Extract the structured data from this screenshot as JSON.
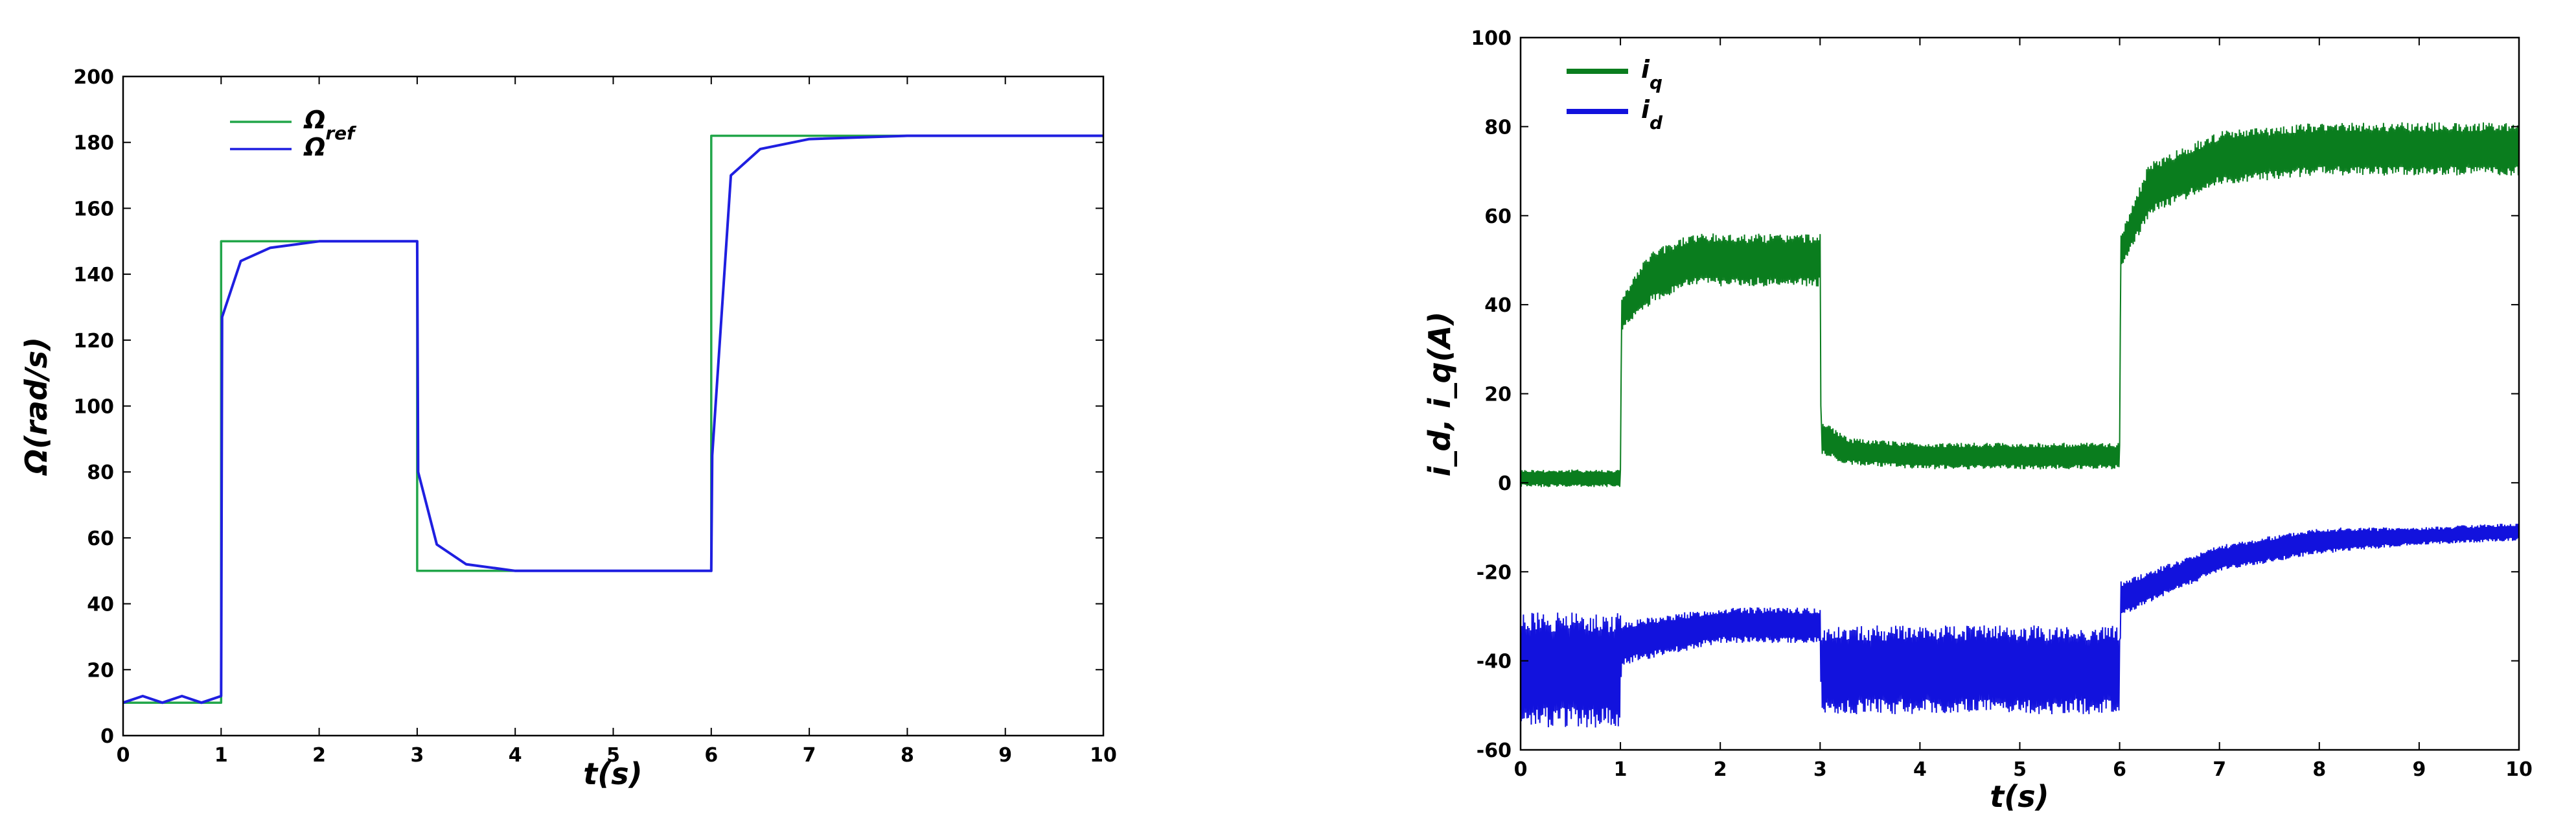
{
  "chart_data": [
    {
      "type": "line",
      "xlabel": "t(s)",
      "ylabel": "Ω(rad/s)",
      "xlim": [
        0,
        10
      ],
      "ylim": [
        0,
        200
      ],
      "xticks": [
        "0",
        "1",
        "2",
        "3",
        "4",
        "5",
        "6",
        "7",
        "8",
        "9",
        "10"
      ],
      "yticks": [
        "0",
        "20",
        "40",
        "60",
        "80",
        "100",
        "120",
        "140",
        "160",
        "180",
        "200"
      ],
      "legend_position": "top-left",
      "series": [
        {
          "name": "Ω_ref",
          "label_main": "Ω",
          "label_sub": "ref",
          "color": "#22a64a",
          "x": [
            0,
            1,
            1,
            3,
            3,
            6,
            6,
            10
          ],
          "y": [
            10,
            10,
            150,
            150,
            50,
            50,
            182,
            182
          ]
        },
        {
          "name": "Ω",
          "label_main": "Ω",
          "label_sub": "",
          "color": "#1f1fe0",
          "x": [
            0,
            0.2,
            0.4,
            0.6,
            0.8,
            1.0,
            1.01,
            1.2,
            1.5,
            2.0,
            2.5,
            3.0,
            3.01,
            3.2,
            3.5,
            4.0,
            5.0,
            6.0,
            6.01,
            6.2,
            6.5,
            7.0,
            8.0,
            10.0
          ],
          "y": [
            10,
            12,
            10,
            12,
            10,
            12,
            127,
            144,
            148,
            150,
            150,
            150,
            80,
            58,
            52,
            50,
            50,
            50,
            85,
            170,
            178,
            181,
            182,
            182
          ]
        }
      ]
    },
    {
      "type": "line",
      "xlabel": "t(s)",
      "ylabel": "i_d, i_q(A)",
      "xlim": [
        0,
        10
      ],
      "ylim": [
        -60,
        100
      ],
      "xticks": [
        "0",
        "1",
        "2",
        "3",
        "4",
        "5",
        "6",
        "7",
        "8",
        "9",
        "10"
      ],
      "yticks": [
        "-60",
        "-40",
        "-20",
        "0",
        "20",
        "40",
        "60",
        "80",
        "100"
      ],
      "legend_position": "top-left",
      "series": [
        {
          "name": "i_q",
          "label_main": "i",
          "label_sub": "q",
          "color": "#0a7d1e",
          "x": [
            0,
            1.0,
            1.01,
            1.3,
            1.7,
            2.0,
            3.0,
            3.01,
            3.3,
            4.0,
            6.0,
            6.01,
            6.3,
            7.0,
            8.0,
            9.0,
            10.0
          ],
          "y": [
            1,
            1,
            38,
            46,
            50,
            50,
            50,
            10,
            7,
            6,
            6,
            52,
            66,
            73,
            75,
            75,
            75
          ],
          "band": [
            2,
            2,
            4,
            6,
            6,
            6,
            6,
            4,
            3,
            3,
            3,
            4,
            6,
            6,
            6,
            6,
            6
          ]
        },
        {
          "name": "i_d",
          "label_main": "i",
          "label_sub": "d",
          "color": "#1212dd",
          "x": [
            0,
            1.0,
            1.01,
            2.0,
            3.0,
            3.01,
            4.0,
            6.0,
            6.01,
            7.0,
            8.0,
            9.0,
            10.0
          ],
          "y": [
            -42,
            -42,
            -36,
            -32,
            -32,
            -42,
            -42,
            -42,
            -26,
            -17,
            -13,
            -12,
            -11
          ],
          "band": [
            13,
            13,
            5,
            4,
            4,
            10,
            10,
            10,
            4,
            3,
            3,
            2,
            2
          ]
        }
      ]
    }
  ]
}
